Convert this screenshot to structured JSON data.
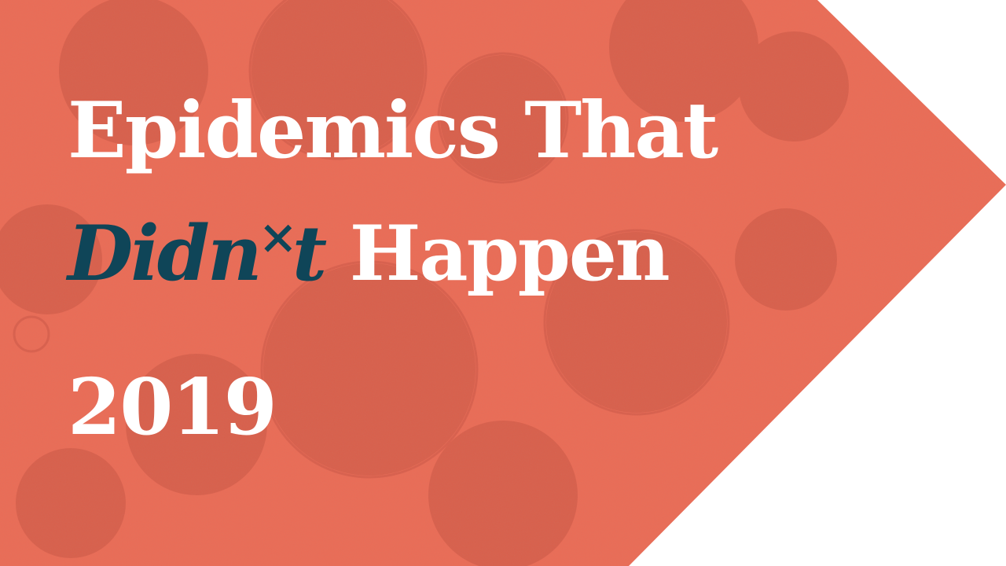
{
  "colors": {
    "banner": "#ec6b55",
    "banner_texture": "#c4503e",
    "text": "#ffffff",
    "accent_text": "#0f4558",
    "background": "#ffffff"
  },
  "title": {
    "line1": "Epidemics That",
    "line2_accent_part1": "Didn",
    "line2_mark": "×",
    "line2_accent_part2": "t",
    "line2_rest": "Happen"
  },
  "year": "2019",
  "background_image": "virus-micrograph-texture"
}
